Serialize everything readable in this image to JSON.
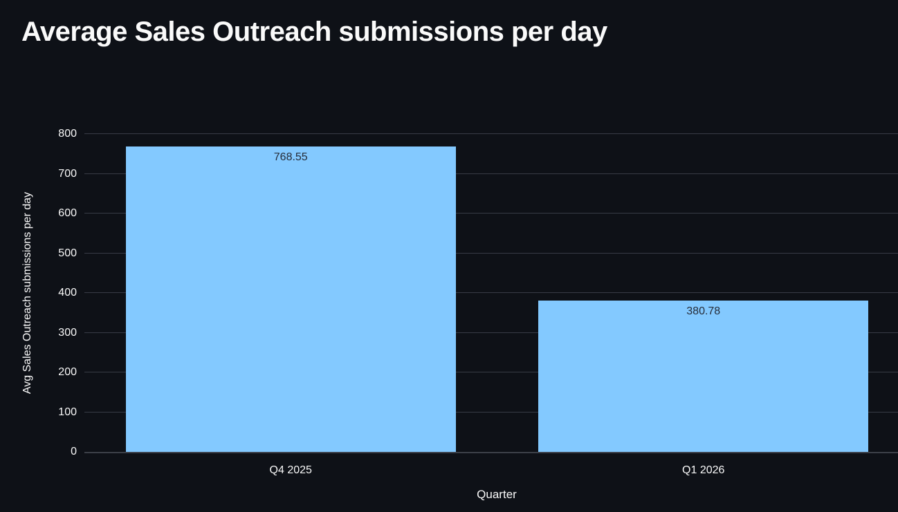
{
  "page": {
    "title": "Average Sales Outreach submissions per day"
  },
  "chart_data": {
    "type": "bar",
    "title": "Average Sales Outreach submissions per day",
    "categories": [
      "Q4 2025",
      "Q1 2026"
    ],
    "values": [
      768.55,
      380.78
    ],
    "value_labels": [
      "768.55",
      "380.78"
    ],
    "xlabel": "Quarter",
    "ylabel": "Avg Sales Outreach submissions per day",
    "ylim": [
      0,
      800
    ],
    "yticks": [
      0,
      100,
      200,
      300,
      400,
      500,
      600,
      700,
      800
    ],
    "grid": true,
    "legend": "none",
    "colors": {
      "background": "#0e1117",
      "bar": "#83c9ff",
      "gridline": "#383c46",
      "axis_text": "#fafafa",
      "bar_label": "#262c38",
      "title_text": "#fafafa"
    }
  }
}
